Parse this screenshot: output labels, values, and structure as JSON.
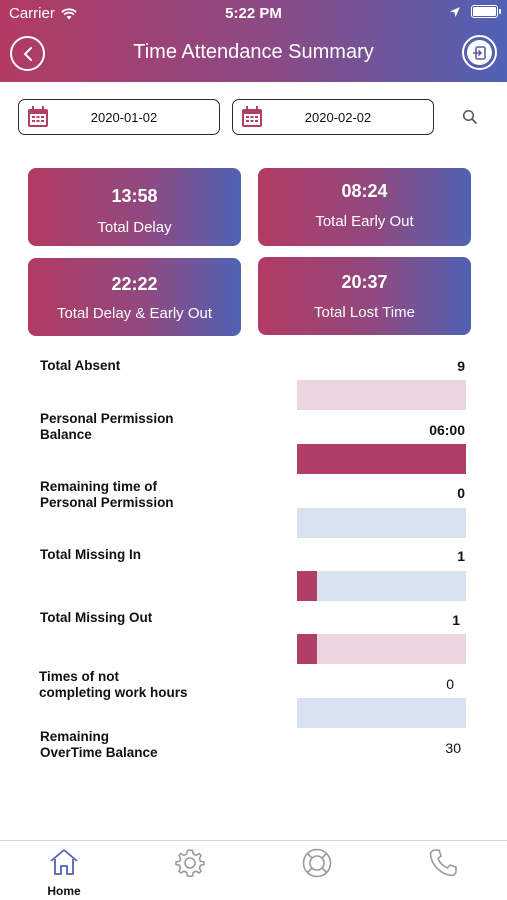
{
  "status_bar": {
    "carrier": "Carrier",
    "time": "5:22 PM"
  },
  "header": {
    "title": "Time Attendance Summary"
  },
  "date_filter": {
    "from_date": "2020-01-02",
    "to_date": "2020-02-02"
  },
  "summary_cards": [
    {
      "value": "13:58",
      "label": "Total Delay"
    },
    {
      "value": "08:24",
      "label": "Total Early Out"
    },
    {
      "value": "22:22",
      "label": "Total Delay & Early Out"
    },
    {
      "value": "20:37",
      "label": "Total Lost Time"
    }
  ],
  "stats": [
    {
      "label_lines": [
        "Total Absent"
      ],
      "value": "9",
      "bar_color": "pink",
      "bar_fraction": 0
    },
    {
      "label_lines": [
        "Personal Permission",
        "Balance"
      ],
      "value": "06:00",
      "bar_color": "pink",
      "bar_fraction": 1
    },
    {
      "label_lines": [
        "Remaining time of",
        "Personal Permission"
      ],
      "value": "0",
      "bar_color": "blue",
      "bar_fraction": 0
    },
    {
      "label_lines": [
        "Total Missing In"
      ],
      "value": "1",
      "bar_color": "blue",
      "bar_fraction": 0.12
    },
    {
      "label_lines": [
        "Total Missing Out"
      ],
      "value": "1",
      "bar_color": "pink",
      "bar_fraction": 0.12
    },
    {
      "label_lines": [
        "Times of not",
        "completing work hours"
      ],
      "value": "0",
      "bar_color": "blue",
      "bar_fraction": 0
    },
    {
      "label_lines": [
        "Remaining",
        "OverTime Balance"
      ],
      "value": "30"
    }
  ],
  "tab_bar": {
    "tabs": [
      {
        "icon": "home-icon",
        "label": "Home",
        "active": true
      },
      {
        "icon": "gear-icon",
        "label": ""
      },
      {
        "icon": "lifebuoy-icon",
        "label": ""
      },
      {
        "icon": "phone-icon",
        "label": ""
      }
    ]
  },
  "colors": {
    "accent_start": "#b23a63",
    "accent_end": "#4f62b4",
    "active_tab": "#4f62b4",
    "inactive_tab": "#9a9a9a"
  }
}
